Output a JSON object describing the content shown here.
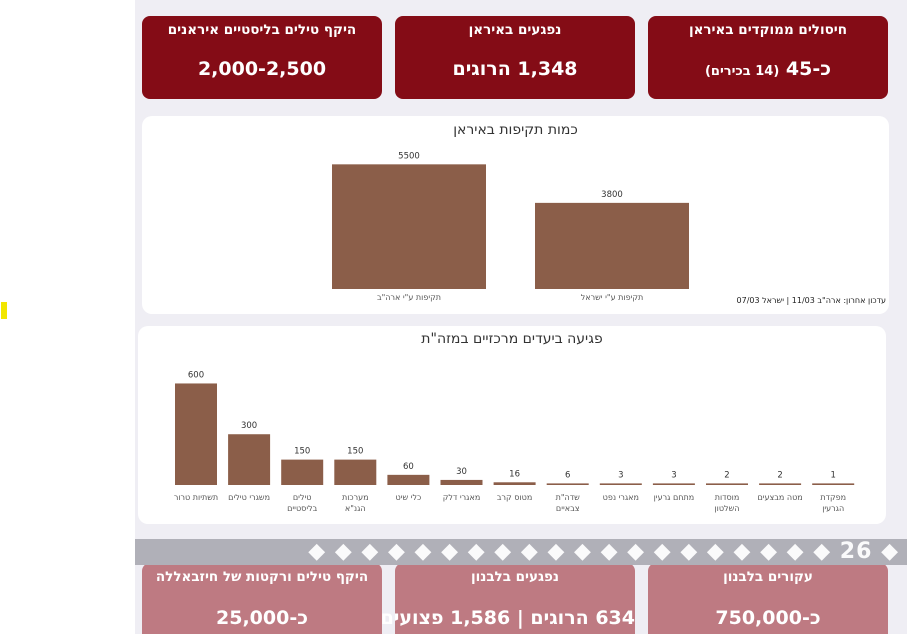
{
  "top_cards": [
    {
      "title": "היקף טילים בליסטיים איראנים",
      "value": "2,000-2,500",
      "note": ""
    },
    {
      "title": "נפגעים באיראן",
      "value": "1,348 הרוגים",
      "note": ""
    },
    {
      "title": "חיסולים ממוקדים באיראן",
      "value": "כ-45",
      "note": "(14 בכירים)"
    }
  ],
  "attack_chart": {
    "title": "כמות תקיפות באיראן",
    "update_note": "עדכון אחרון: ארה\"ב 11/03 | ישראל 07/03",
    "chart_data": {
      "type": "bar",
      "title": "כמות תקיפות באיראן",
      "categories": [
        "תקיפות ע\"י ארה\"ב",
        "תקיפות ע\"י ישראל"
      ],
      "values": [
        5500,
        3800
      ],
      "ylim": [
        0,
        6000
      ],
      "color": "#8b5e49"
    }
  },
  "targets_chart": {
    "title": "פגיעה ביעדים מרכזיים במזה\"ת",
    "chart_data": {
      "type": "bar",
      "title": "פגיעה ביעדים מרכזיים במזה\"ת",
      "categories": [
        "תשתיות טרור",
        "משגרי טילים",
        "טילים בליסטיים",
        "מערכות הגנ\"א",
        "כלי שיט",
        "מאגרי דלק",
        "מטוס קרב",
        "שדה\"ת צבאיים",
        "מאגרי נפט",
        "מתחם גרעין",
        "מוסדות השלטון",
        "מטה מבצעים",
        "מפקדת הגרעין"
      ],
      "label_lines": [
        [
          "תשתיות טרור"
        ],
        [
          "משגרי טילים"
        ],
        [
          "טילים",
          "בליסטיים"
        ],
        [
          "מערכות",
          "הגנ\"א"
        ],
        [
          "כלי שיט"
        ],
        [
          "מאגרי דלק"
        ],
        [
          "מטוס קרב"
        ],
        [
          "שדה\"ת",
          "צבאיים"
        ],
        [
          "מאגרי נפט"
        ],
        [
          "מתחם גרעין"
        ],
        [
          "מוסדות",
          "השלטון"
        ],
        [
          "מטה מבצעים"
        ],
        [
          "מפקדת",
          "הגרעין"
        ]
      ],
      "values": [
        600,
        300,
        150,
        150,
        60,
        30,
        16,
        6,
        3,
        3,
        2,
        2,
        1
      ],
      "ylim": [
        0,
        650
      ],
      "color": "#8b5e49"
    }
  },
  "ticker_text": "◆ 26 ◆ ◆ ◆ ◆ ◆ ◆ ◆ ◆ ◆ ◆ ◆ ◆ ◆ ◆ ◆ ◆ ◆ ◆ ◆ ◆",
  "bottom_cards": [
    {
      "title": "היקף טילים ורקטות של חיזבאללה",
      "value": "כ-25,000"
    },
    {
      "title": "נפגעים בלבנון",
      "value": "634 הרוגים | 1,586 פצועים"
    },
    {
      "title": "עקורים בלבנון",
      "value": "כ-750,000"
    }
  ],
  "colors": {
    "card_dark": "#840c16",
    "card_light": "#be7a82",
    "bar": "#8b5e49",
    "panel_bg": "#efeef4"
  }
}
